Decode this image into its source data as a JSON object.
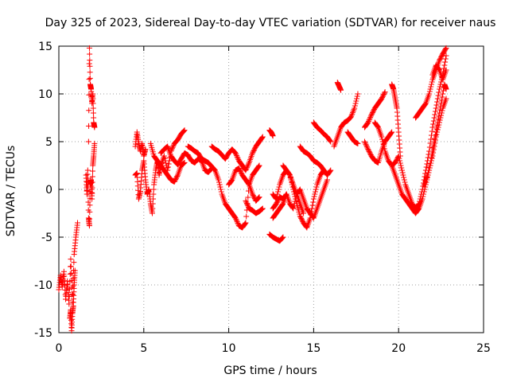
{
  "chart_data": {
    "type": "scatter",
    "title": "Day 325 of 2023, Sidereal Day-to-day VTEC variation (SDTVAR) for receiver naus",
    "xlabel": "GPS time / hours",
    "ylabel": "SDTVAR / TECUs",
    "xlim": [
      0,
      25
    ],
    "ylim": [
      -15,
      15
    ],
    "x_ticks": [
      0,
      5,
      10,
      15,
      20,
      25
    ],
    "y_ticks": [
      -15,
      -10,
      -5,
      0,
      5,
      10,
      15
    ],
    "x_tick_labels": [
      "0",
      "5",
      "10",
      "15",
      "20",
      "25"
    ],
    "y_tick_labels": [
      "-15",
      "-10",
      "-5",
      "0",
      "5",
      "10",
      "15"
    ],
    "grid": true,
    "marker": "+",
    "color": "#ff0000",
    "series": [
      {
        "name": "SDTVAR",
        "segments": [
          {
            "x": [
              0.0,
              0.1,
              0.2,
              0.3,
              0.4,
              0.5,
              0.6,
              0.7,
              0.8,
              0.9,
              1.0,
              1.1
            ],
            "y": [
              -10.5,
              -9.0,
              -10.2,
              -8.6,
              -11.5,
              -9.6,
              -12.0,
              -7.3,
              -11.8,
              -6.8,
              -5.0,
              -3.5
            ]
          },
          {
            "x": [
              0.65,
              0.7,
              0.75,
              0.8,
              0.85,
              0.9,
              0.95
            ],
            "y": [
              -13.5,
              -12.6,
              -14.8,
              -13.0,
              -12.2,
              -10.0,
              -8.5
            ]
          },
          {
            "x": [
              1.6,
              1.65,
              1.7,
              1.75,
              1.8,
              1.85,
              1.9,
              1.95,
              2.0,
              2.05,
              2.1
            ],
            "y": [
              1.5,
              -0.5,
              2.0,
              -3.0,
              -3.8,
              0.5,
              1.0,
              -1.0,
              2.5,
              3.5,
              4.8
            ]
          },
          {
            "x": [
              1.75,
              1.8,
              1.85,
              1.9,
              1.95,
              2.0,
              2.05,
              2.1
            ],
            "y": [
              5.0,
              14.8,
              11.0,
              10.5,
              9.0,
              10.0,
              7.0,
              6.5
            ]
          },
          {
            "x": [
              4.5,
              4.6,
              4.7,
              4.8,
              4.9,
              5.0,
              5.1
            ],
            "y": [
              4.5,
              6.0,
              4.8,
              4.0,
              4.8,
              3.5,
              4.2
            ]
          },
          {
            "x": [
              4.5,
              4.6,
              4.7,
              4.8,
              4.9,
              5.0,
              5.1,
              5.2,
              5.3,
              5.4,
              5.5,
              5.6,
              5.7,
              5.8,
              5.9,
              6.0,
              6.2,
              6.4,
              6.6,
              6.8,
              7.0,
              7.2,
              7.4
            ],
            "y": [
              1.5,
              1.7,
              -1.0,
              -0.2,
              2.0,
              3.0,
              1.0,
              -0.5,
              0.0,
              -1.5,
              -2.5,
              0.5,
              2.0,
              3.0,
              1.5,
              2.5,
              3.5,
              2.0,
              4.0,
              4.8,
              5.2,
              5.8,
              6.2
            ]
          },
          {
            "x": [
              5.4,
              5.6,
              5.8,
              6.0,
              6.2,
              6.4,
              6.6,
              6.8,
              7.0,
              7.2,
              7.4
            ],
            "y": [
              4.8,
              3.5,
              3.0,
              2.5,
              2.0,
              1.5,
              1.0,
              0.8,
              1.5,
              2.5,
              2.8
            ]
          },
          {
            "x": [
              6.0,
              6.2,
              6.4,
              6.6,
              6.8,
              7.0,
              7.2,
              7.4,
              7.6,
              7.8,
              8.0,
              8.2,
              8.4,
              8.6,
              8.8,
              9.0
            ],
            "y": [
              3.8,
              4.2,
              4.5,
              3.5,
              3.0,
              2.6,
              3.2,
              3.8,
              3.6,
              3.0,
              2.8,
              3.2,
              3.0,
              2.0,
              1.8,
              2.2
            ]
          },
          {
            "x": [
              7.6,
              7.8,
              8.0,
              8.2,
              8.4,
              8.6,
              8.8,
              9.0,
              9.2,
              9.4,
              9.6,
              9.8,
              10.0,
              10.2,
              10.4,
              10.6,
              10.8,
              11.0,
              11.2,
              11.4,
              11.6,
              11.8
            ],
            "y": [
              4.5,
              4.3,
              4.0,
              3.8,
              3.2,
              3.0,
              2.8,
              2.4,
              2.0,
              1.0,
              -0.5,
              -1.5,
              -2.0,
              -2.5,
              -3.0,
              -3.8,
              -4.0,
              -3.5,
              0.5,
              1.5,
              2.0,
              2.5
            ]
          },
          {
            "x": [
              9.0,
              9.2,
              9.4,
              9.6,
              9.8,
              10.0,
              10.2,
              10.4,
              10.6,
              10.8,
              11.0,
              11.2,
              11.4,
              11.6,
              11.8,
              12.0
            ],
            "y": [
              4.5,
              4.2,
              4.0,
              3.6,
              3.2,
              3.8,
              4.2,
              3.8,
              3.0,
              2.5,
              2.0,
              2.8,
              3.8,
              4.5,
              5.0,
              5.5
            ]
          },
          {
            "x": [
              10.0,
              10.2,
              10.4,
              10.6,
              10.8,
              11.0,
              11.2,
              11.4,
              11.6,
              11.8
            ],
            "y": [
              0.5,
              1.0,
              2.0,
              2.2,
              1.5,
              1.0,
              0.5,
              -0.5,
              -1.2,
              -0.8
            ]
          },
          {
            "x": [
              11.0,
              11.2,
              11.4,
              11.6,
              11.8,
              12.0
            ],
            "y": [
              -1.2,
              -2.0,
              -2.2,
              -2.5,
              -2.3,
              -2.0
            ]
          },
          {
            "x": [
              12.4,
              12.5,
              12.6
            ],
            "y": [
              6.2,
              6.0,
              5.6
            ]
          },
          {
            "x": [
              12.4,
              12.6,
              12.8,
              13.0,
              13.2
            ],
            "y": [
              -4.7,
              -5.0,
              -5.2,
              -5.4,
              -5.0
            ]
          },
          {
            "x": [
              12.6,
              12.8,
              13.0,
              13.2,
              13.4,
              13.6,
              13.8,
              14.0,
              14.2,
              14.4,
              14.6,
              14.8,
              15.0,
              15.2,
              15.4,
              15.6
            ],
            "y": [
              -0.5,
              -1.0,
              0.5,
              1.5,
              2.0,
              1.5,
              0.0,
              -1.5,
              -2.8,
              -3.5,
              -4.0,
              -3.0,
              -1.0,
              0.5,
              1.5,
              2.0
            ]
          },
          {
            "x": [
              12.6,
              12.8,
              13.0,
              13.2,
              13.4,
              13.6,
              13.8,
              14.0,
              14.2,
              14.4,
              14.6,
              14.8,
              15.0,
              15.2,
              15.4,
              15.6,
              15.8
            ],
            "y": [
              -2.0,
              -1.5,
              -0.8,
              -1.0,
              -0.5,
              -1.5,
              -2.0,
              -0.5,
              0.0,
              -1.0,
              -2.0,
              -2.5,
              -3.0,
              -2.0,
              -1.0,
              0.0,
              1.0
            ]
          },
          {
            "x": [
              12.6,
              12.8,
              13.0,
              13.2,
              13.4
            ],
            "y": [
              -3.0,
              -2.5,
              -2.0,
              -1.5,
              -0.5
            ]
          },
          {
            "x": [
              13.2,
              13.4,
              13.6,
              13.8,
              14.0,
              14.2,
              14.4
            ],
            "y": [
              2.5,
              2.0,
              1.5,
              0.5,
              -0.5,
              -1.5,
              -2.5
            ]
          },
          {
            "x": [
              14.2,
              14.4,
              14.6,
              14.8,
              15.0,
              15.2,
              15.4,
              15.6,
              15.8,
              16.0
            ],
            "y": [
              4.5,
              4.0,
              3.8,
              3.5,
              3.0,
              2.8,
              2.5,
              2.0,
              1.5,
              2.0
            ]
          },
          {
            "x": [
              15.0,
              15.2,
              15.4,
              15.6,
              15.8,
              16.0
            ],
            "y": [
              7.0,
              6.5,
              6.2,
              5.8,
              5.5,
              5.0
            ]
          },
          {
            "x": [
              16.4,
              16.5,
              16.6
            ],
            "y": [
              11.2,
              10.8,
              10.4
            ]
          },
          {
            "x": [
              16.2,
              16.4,
              16.6,
              16.8,
              17.0,
              17.2,
              17.4,
              17.6
            ],
            "y": [
              4.5,
              5.5,
              6.5,
              7.0,
              7.2,
              7.6,
              8.5,
              10.0
            ]
          },
          {
            "x": [
              17.0,
              17.2,
              17.4,
              17.6
            ],
            "y": [
              6.0,
              5.5,
              5.0,
              4.8
            ]
          },
          {
            "x": [
              18.0,
              18.2,
              18.4,
              18.6,
              18.8,
              19.0,
              19.2
            ],
            "y": [
              6.5,
              7.0,
              7.8,
              8.5,
              9.0,
              9.5,
              10.2
            ]
          },
          {
            "x": [
              18.0,
              18.2,
              18.4,
              18.6,
              18.8,
              19.0,
              19.2,
              19.4,
              19.6
            ],
            "y": [
              5.0,
              4.2,
              3.5,
              3.0,
              2.8,
              4.0,
              5.0,
              5.5,
              6.0
            ]
          },
          {
            "x": [
              18.6,
              18.8,
              19.0,
              19.2,
              19.4,
              19.6,
              19.8,
              20.0,
              20.2,
              20.4,
              20.6,
              20.8,
              21.0,
              21.2,
              21.4,
              21.6,
              21.8,
              22.0,
              22.2,
              22.4,
              22.6,
              22.8
            ],
            "y": [
              7.0,
              6.5,
              5.5,
              4.0,
              3.0,
              2.5,
              2.8,
              3.5,
              2.0,
              0.5,
              -0.5,
              -1.5,
              -2.0,
              -1.5,
              0.0,
              2.0,
              4.0,
              6.5,
              8.5,
              10.5,
              12.0,
              14.0
            ]
          },
          {
            "x": [
              19.6,
              19.8,
              20.0,
              20.2,
              20.4,
              20.6,
              20.8,
              21.0,
              21.2,
              21.4,
              21.6,
              21.8,
              22.0,
              22.2,
              22.4,
              22.6,
              22.8
            ],
            "y": [
              2.5,
              1.5,
              0.5,
              -0.5,
              -1.0,
              -1.5,
              -2.0,
              -2.5,
              -2.0,
              -1.0,
              0.5,
              2.0,
              3.5,
              5.5,
              7.0,
              8.5,
              9.5
            ]
          },
          {
            "x": [
              19.6,
              19.7,
              19.8,
              19.9,
              20.0,
              20.1
            ],
            "y": [
              11.0,
              10.5,
              9.5,
              8.5,
              6.0,
              3.5
            ]
          },
          {
            "x": [
              21.0,
              21.2,
              21.4,
              21.6,
              21.8,
              22.0,
              22.2,
              22.4,
              22.6,
              22.8
            ],
            "y": [
              7.5,
              8.0,
              8.5,
              9.0,
              10.0,
              11.5,
              12.5,
              13.5,
              14.2,
              14.8
            ]
          },
          {
            "x": [
              22.0,
              22.2,
              22.4,
              22.6,
              22.8
            ],
            "y": [
              12.0,
              13.0,
              12.5,
              11.5,
              12.5
            ]
          },
          {
            "x": [
              21.5,
              21.7,
              21.9,
              22.1,
              22.3,
              22.5,
              22.7,
              22.8
            ],
            "y": [
              0.5,
              1.5,
              3.0,
              5.0,
              7.0,
              9.0,
              11.0,
              10.5
            ]
          }
        ]
      }
    ]
  }
}
